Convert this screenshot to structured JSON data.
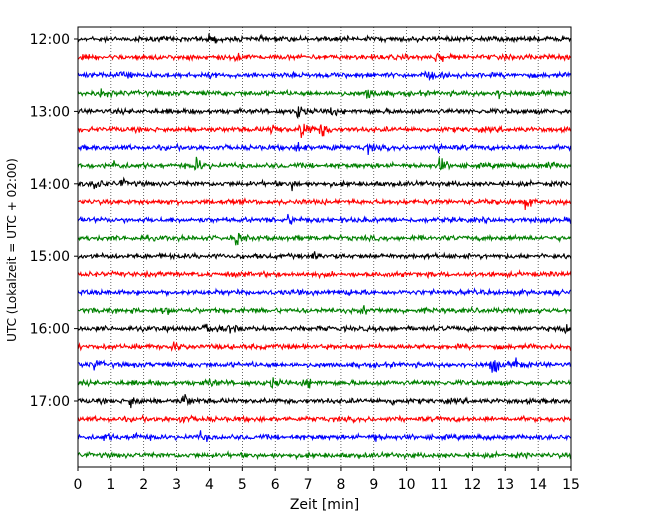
{
  "chart_data": {
    "type": "line",
    "xlabel": "Zeit  [min]",
    "ylabel": "UTC (Lokalzeit = UTC + 02:00)",
    "xlim": [
      0,
      15
    ],
    "x_ticks": [
      "0",
      "1",
      "2",
      "3",
      "4",
      "5",
      "6",
      "7",
      "8",
      "9",
      "10",
      "11",
      "12",
      "13",
      "14",
      "15"
    ],
    "x_grid": "dotted vertical lines at each minute",
    "y_ticks": [
      {
        "label": "12:00",
        "hour_offset": 0
      },
      {
        "label": "13:00",
        "hour_offset": 1
      },
      {
        "label": "14:00",
        "hour_offset": 2
      },
      {
        "label": "15:00",
        "hour_offset": 3
      },
      {
        "label": "16:00",
        "hour_offset": 4
      },
      {
        "label": "17:00",
        "hour_offset": 5
      }
    ],
    "trace_interval_min": 15,
    "start_time": "12:00",
    "colors": [
      "#000000",
      "#ff0000",
      "#0000ff",
      "#008000"
    ],
    "traces": [
      {
        "start": "12:00",
        "color": "#000000",
        "events": [
          [
            4.0,
            0.5
          ]
        ]
      },
      {
        "start": "12:15",
        "color": "#ff0000",
        "events": [
          [
            4.8,
            0.6
          ],
          [
            10.9,
            0.7
          ]
        ]
      },
      {
        "start": "12:30",
        "color": "#0000ff",
        "events": [
          [
            1.3,
            0.9
          ],
          [
            10.6,
            0.6
          ]
        ]
      },
      {
        "start": "12:45",
        "color": "#008000",
        "events": [
          [
            0.7,
            0.6
          ],
          [
            8.8,
            0.8
          ],
          [
            12.8,
            0.5
          ]
        ]
      },
      {
        "start": "13:00",
        "color": "#000000",
        "events": [
          [
            6.7,
            0.8
          ],
          [
            7.6,
            0.6
          ]
        ]
      },
      {
        "start": "13:15",
        "color": "#ff0000",
        "events": [
          [
            5.9,
            0.7
          ],
          [
            6.8,
            1.4
          ],
          [
            7.4,
            0.9
          ]
        ]
      },
      {
        "start": "13:30",
        "color": "#0000ff",
        "events": [
          [
            6.7,
            0.6
          ],
          [
            7.6,
            0.5
          ],
          [
            8.8,
            0.5
          ],
          [
            11.0,
            0.5
          ]
        ]
      },
      {
        "start": "13:45",
        "color": "#008000",
        "events": [
          [
            1.1,
            0.5
          ],
          [
            3.6,
            0.9
          ],
          [
            11.0,
            0.9
          ],
          [
            14.3,
            0.5
          ]
        ]
      },
      {
        "start": "14:00",
        "color": "#000000",
        "events": [
          [
            0.5,
            0.8
          ],
          [
            1.3,
            0.4
          ],
          [
            6.5,
            0.5
          ]
        ]
      },
      {
        "start": "14:15",
        "color": "#ff0000",
        "events": [
          [
            13.6,
            0.6
          ]
        ]
      },
      {
        "start": "14:30",
        "color": "#0000ff",
        "events": [
          [
            6.4,
            0.6
          ]
        ]
      },
      {
        "start": "14:45",
        "color": "#008000",
        "events": [
          [
            4.8,
            0.8
          ]
        ]
      },
      {
        "start": "15:00",
        "color": "#000000",
        "events": [
          [
            7.2,
            0.5
          ]
        ]
      },
      {
        "start": "15:15",
        "color": "#ff0000",
        "events": []
      },
      {
        "start": "15:30",
        "color": "#0000ff",
        "events": [
          [
            8.2,
            0.3
          ]
        ]
      },
      {
        "start": "15:45",
        "color": "#008000",
        "events": [
          [
            2.6,
            0.5
          ],
          [
            8.7,
            0.4
          ]
        ]
      },
      {
        "start": "16:00",
        "color": "#000000",
        "events": [
          [
            3.9,
            1.0
          ],
          [
            4.6,
            0.5
          ],
          [
            14.8,
            0.8
          ]
        ]
      },
      {
        "start": "16:15",
        "color": "#ff0000",
        "events": [
          [
            2.9,
            0.5
          ]
        ]
      },
      {
        "start": "16:30",
        "color": "#0000ff",
        "events": [
          [
            0.5,
            0.6
          ],
          [
            12.6,
            1.2
          ],
          [
            13.3,
            0.6
          ]
        ]
      },
      {
        "start": "16:45",
        "color": "#008000",
        "events": [
          [
            4.0,
            0.5
          ],
          [
            5.9,
            0.6
          ],
          [
            6.9,
            0.8
          ]
        ]
      },
      {
        "start": "17:00",
        "color": "#000000",
        "events": [
          [
            1.6,
            0.8
          ],
          [
            3.2,
            1.0
          ],
          [
            9.5,
            0.4
          ]
        ]
      },
      {
        "start": "17:15",
        "color": "#ff0000",
        "events": [
          [
            3.1,
            0.4
          ]
        ]
      },
      {
        "start": "17:30",
        "color": "#0000ff",
        "events": [
          [
            0.8,
            0.4
          ],
          [
            1.7,
            0.5
          ],
          [
            3.7,
            0.5
          ],
          [
            9.0,
            0.4
          ]
        ]
      },
      {
        "start": "17:45",
        "color": "#008000",
        "events": []
      }
    ]
  }
}
